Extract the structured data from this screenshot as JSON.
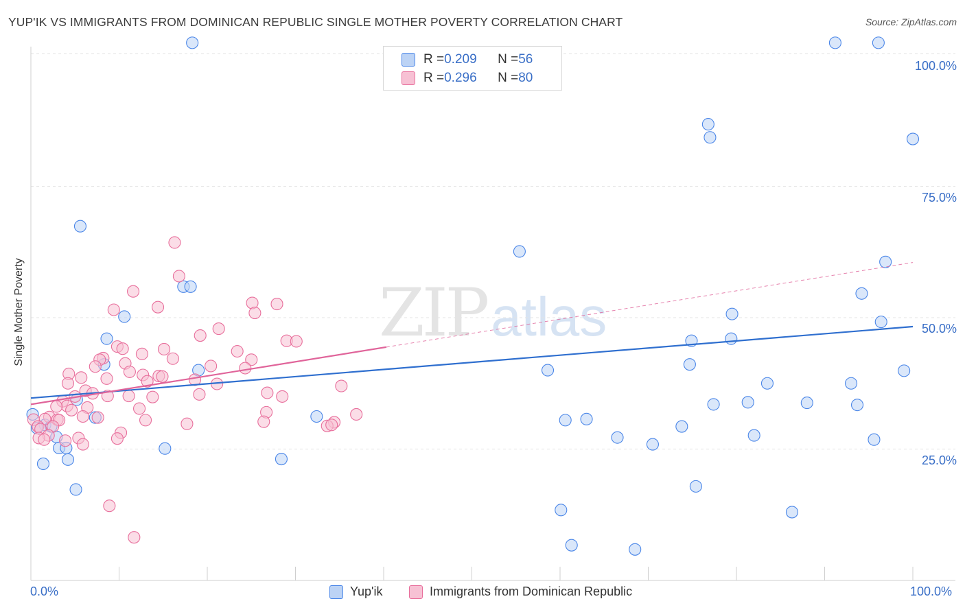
{
  "header": {
    "title": "YUP'IK VS IMMIGRANTS FROM DOMINICAN REPUBLIC SINGLE MOTHER POVERTY CORRELATION CHART",
    "source": "Source: ZipAtlas.com"
  },
  "watermark": {
    "zip": "ZIP",
    "atlas": "atlas"
  },
  "legend": {
    "rows": [
      {
        "r_label": "R = ",
        "r_value": "0.209",
        "n_label": "N = ",
        "n_value": "56"
      },
      {
        "r_label": "R = ",
        "r_value": "0.296",
        "n_label": "N = ",
        "n_value": "80"
      }
    ]
  },
  "bottom_legend": {
    "series_1": "Yup'ik",
    "series_2": "Immigrants from Dominican Republic"
  },
  "axes": {
    "x_min_label": "0.0%",
    "x_max_label": "100.0%",
    "y_ticks": [
      "100.0%",
      "75.0%",
      "50.0%",
      "25.0%"
    ]
  },
  "colors": {
    "blue": "#4a86e8",
    "blue_fill": "#bcd3f5",
    "blue_line": "#2f6fcf",
    "pink": "#e86f9c",
    "pink_fill": "#f7c1d4",
    "pink_line": "#e0649a",
    "axis_text": "#3a6fc7",
    "grid": "#e3e3e3"
  },
  "chart_data": {
    "type": "scatter",
    "title": "YUP'IK VS IMMIGRANTS FROM DOMINICAN REPUBLIC SINGLE MOTHER POVERTY CORRELATION CHART",
    "xlabel": "",
    "ylabel": "Single Mother Poverty",
    "xlim": [
      0,
      100
    ],
    "ylim": [
      0,
      100
    ],
    "y_ticks": [
      25,
      50,
      75,
      100
    ],
    "grid": true,
    "legend_position": "top-center",
    "series": [
      {
        "name": "Yup'ik",
        "color": "#4a86e8",
        "r": 0.209,
        "n": 56,
        "trend": {
          "x": [
            0,
            100
          ],
          "y": [
            34.7,
            48.3
          ]
        },
        "points": [
          [
            18.3,
            102.3
          ],
          [
            91.2,
            102.3
          ],
          [
            96.1,
            102.3
          ],
          [
            76.8,
            86.8
          ],
          [
            77.0,
            84.3
          ],
          [
            100.0,
            84.0
          ],
          [
            5.6,
            67.4
          ],
          [
            55.4,
            62.6
          ],
          [
            96.9,
            60.6
          ],
          [
            17.3,
            55.9
          ],
          [
            18.1,
            55.9
          ],
          [
            94.2,
            54.6
          ],
          [
            10.6,
            50.2
          ],
          [
            79.5,
            50.7
          ],
          [
            96.4,
            49.2
          ],
          [
            8.6,
            46.0
          ],
          [
            79.4,
            46.0
          ],
          [
            74.9,
            45.6
          ],
          [
            8.3,
            41.1
          ],
          [
            74.7,
            41.1
          ],
          [
            19.0,
            40.0
          ],
          [
            58.6,
            40.0
          ],
          [
            99.0,
            39.9
          ],
          [
            83.5,
            37.5
          ],
          [
            93.0,
            37.5
          ],
          [
            5.2,
            34.4
          ],
          [
            81.3,
            33.9
          ],
          [
            88.0,
            33.8
          ],
          [
            77.4,
            33.5
          ],
          [
            93.7,
            33.4
          ],
          [
            0.2,
            31.6
          ],
          [
            7.3,
            31.0
          ],
          [
            32.4,
            31.2
          ],
          [
            60.6,
            30.5
          ],
          [
            63.0,
            30.7
          ],
          [
            73.8,
            29.3
          ],
          [
            1.6,
            29.6
          ],
          [
            2.3,
            29.3
          ],
          [
            0.7,
            29.0
          ],
          [
            2.9,
            27.3
          ],
          [
            66.5,
            27.2
          ],
          [
            82.0,
            27.6
          ],
          [
            95.6,
            26.8
          ],
          [
            3.2,
            25.2
          ],
          [
            4.0,
            25.2
          ],
          [
            15.2,
            25.1
          ],
          [
            70.5,
            25.9
          ],
          [
            4.2,
            23.0
          ],
          [
            28.4,
            23.1
          ],
          [
            1.4,
            22.2
          ],
          [
            5.1,
            17.3
          ],
          [
            75.4,
            17.9
          ],
          [
            60.1,
            13.4
          ],
          [
            86.3,
            13.0
          ],
          [
            61.3,
            6.7
          ],
          [
            68.5,
            5.9
          ]
        ]
      },
      {
        "name": "Immigrants from Dominican Republic",
        "color": "#e86f9c",
        "r": 0.296,
        "n": 80,
        "trend_solid": {
          "x": [
            0,
            40.3
          ],
          "y": [
            33.5,
            44.4
          ]
        },
        "trend_dashed": {
          "x": [
            40.3,
            100
          ],
          "y": [
            44.4,
            60.5
          ]
        },
        "points": [
          [
            16.3,
            64.3
          ],
          [
            16.8,
            57.9
          ],
          [
            11.6,
            55.0
          ],
          [
            14.4,
            52.0
          ],
          [
            9.4,
            51.5
          ],
          [
            25.1,
            52.8
          ],
          [
            27.9,
            52.6
          ],
          [
            25.4,
            50.9
          ],
          [
            21.3,
            47.9
          ],
          [
            19.2,
            46.6
          ],
          [
            29.0,
            45.6
          ],
          [
            30.1,
            45.5
          ],
          [
            9.8,
            44.5
          ],
          [
            10.4,
            44.1
          ],
          [
            15.1,
            44.0
          ],
          [
            23.4,
            43.6
          ],
          [
            12.6,
            43.1
          ],
          [
            8.2,
            42.3
          ],
          [
            7.8,
            42.0
          ],
          [
            16.1,
            42.2
          ],
          [
            25.0,
            42.0
          ],
          [
            10.7,
            41.3
          ],
          [
            7.3,
            40.7
          ],
          [
            20.4,
            40.8
          ],
          [
            24.3,
            40.4
          ],
          [
            4.3,
            39.3
          ],
          [
            11.2,
            39.7
          ],
          [
            12.7,
            39.1
          ],
          [
            14.5,
            38.9
          ],
          [
            14.9,
            38.8
          ],
          [
            5.7,
            38.6
          ],
          [
            8.6,
            38.4
          ],
          [
            4.2,
            37.5
          ],
          [
            13.2,
            37.9
          ],
          [
            18.6,
            38.2
          ],
          [
            21.1,
            37.4
          ],
          [
            35.2,
            37.0
          ],
          [
            6.2,
            36.1
          ],
          [
            7.0,
            35.6
          ],
          [
            19.1,
            35.4
          ],
          [
            5.0,
            35.0
          ],
          [
            8.7,
            35.1
          ],
          [
            11.1,
            35.1
          ],
          [
            13.8,
            34.9
          ],
          [
            26.8,
            35.7
          ],
          [
            28.5,
            35.0
          ],
          [
            3.6,
            34.1
          ],
          [
            4.1,
            33.2
          ],
          [
            2.9,
            33.1
          ],
          [
            6.4,
            32.9
          ],
          [
            12.3,
            32.7
          ],
          [
            4.6,
            32.4
          ],
          [
            26.7,
            32.0
          ],
          [
            36.9,
            31.6
          ],
          [
            5.9,
            31.2
          ],
          [
            7.6,
            31.0
          ],
          [
            2.1,
            31.1
          ],
          [
            1.6,
            30.7
          ],
          [
            0.3,
            30.6
          ],
          [
            3.0,
            30.6
          ],
          [
            13.0,
            30.5
          ],
          [
            3.2,
            30.5
          ],
          [
            26.4,
            30.2
          ],
          [
            34.4,
            30.1
          ],
          [
            17.7,
            29.8
          ],
          [
            33.6,
            29.4
          ],
          [
            34.1,
            29.6
          ],
          [
            0.8,
            29.3
          ],
          [
            2.5,
            29.3
          ],
          [
            1.1,
            28.8
          ],
          [
            10.2,
            28.1
          ],
          [
            2.0,
            27.6
          ],
          [
            0.9,
            27.1
          ],
          [
            5.4,
            27.1
          ],
          [
            9.8,
            27.0
          ],
          [
            1.5,
            26.8
          ],
          [
            3.9,
            26.6
          ],
          [
            5.9,
            25.9
          ],
          [
            8.9,
            14.2
          ],
          [
            11.7,
            8.2
          ]
        ]
      }
    ]
  }
}
